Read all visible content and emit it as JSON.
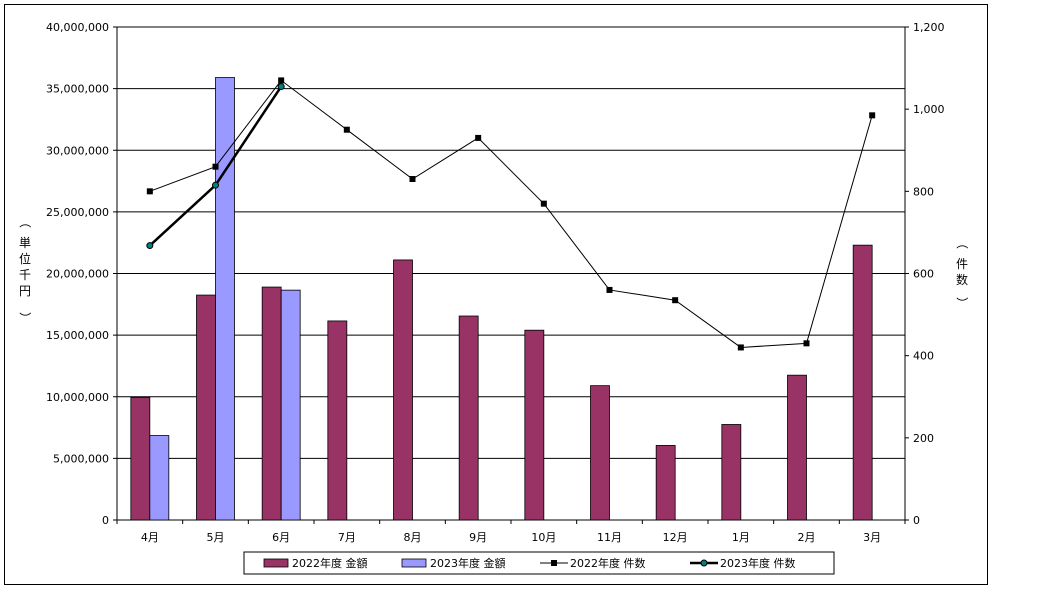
{
  "chart_data": {
    "type": "bar",
    "categories": [
      "4月",
      "5月",
      "6月",
      "7月",
      "8月",
      "9月",
      "10月",
      "11月",
      "12月",
      "1月",
      "2月",
      "3月"
    ],
    "y_left": {
      "label_chars": [
        "単",
        "位",
        "千",
        "円"
      ],
      "paren_open": "（",
      "paren_close": "）",
      "ylim": [
        0,
        40000000
      ],
      "ticks": [
        "0",
        "5,000,000",
        "10,000,000",
        "15,000,000",
        "20,000,000",
        "25,000,000",
        "30,000,000",
        "35,000,000",
        "40,000,000"
      ]
    },
    "y_right": {
      "label_chars": [
        "件",
        "数"
      ],
      "paren_open": "（",
      "paren_close": "）",
      "ylim": [
        0,
        1200
      ],
      "ticks": [
        "0",
        "200",
        "400",
        "600",
        "800",
        "1,000",
        "1,200"
      ]
    },
    "grid": true,
    "series": [
      {
        "name": "2022年度 金額",
        "kind": "bar",
        "axis": "left",
        "color": "#993366",
        "values": [
          9950000,
          18250000,
          18900000,
          16150000,
          21100000,
          16550000,
          15400000,
          10900000,
          6050000,
          7750000,
          11750000,
          22300000
        ]
      },
      {
        "name": "2023年度 金額",
        "kind": "bar",
        "axis": "left",
        "color": "#9999ff",
        "values": [
          6850000,
          35900000,
          18650000,
          null,
          null,
          null,
          null,
          null,
          null,
          null,
          null,
          null
        ]
      },
      {
        "name": "2022年度 件数",
        "kind": "line",
        "axis": "right",
        "color": "#000000",
        "marker": "square",
        "values": [
          800,
          860,
          1070,
          950,
          830,
          930,
          770,
          560,
          535,
          420,
          430,
          985
        ]
      },
      {
        "name": "2023年度 件数",
        "kind": "line",
        "axis": "right",
        "color": "#000000",
        "marker": "circle",
        "marker_color": "#008080",
        "values": [
          668,
          815,
          1055,
          null,
          null,
          null,
          null,
          null,
          null,
          null,
          null,
          null
        ]
      }
    ],
    "legend_position": "bottom"
  }
}
